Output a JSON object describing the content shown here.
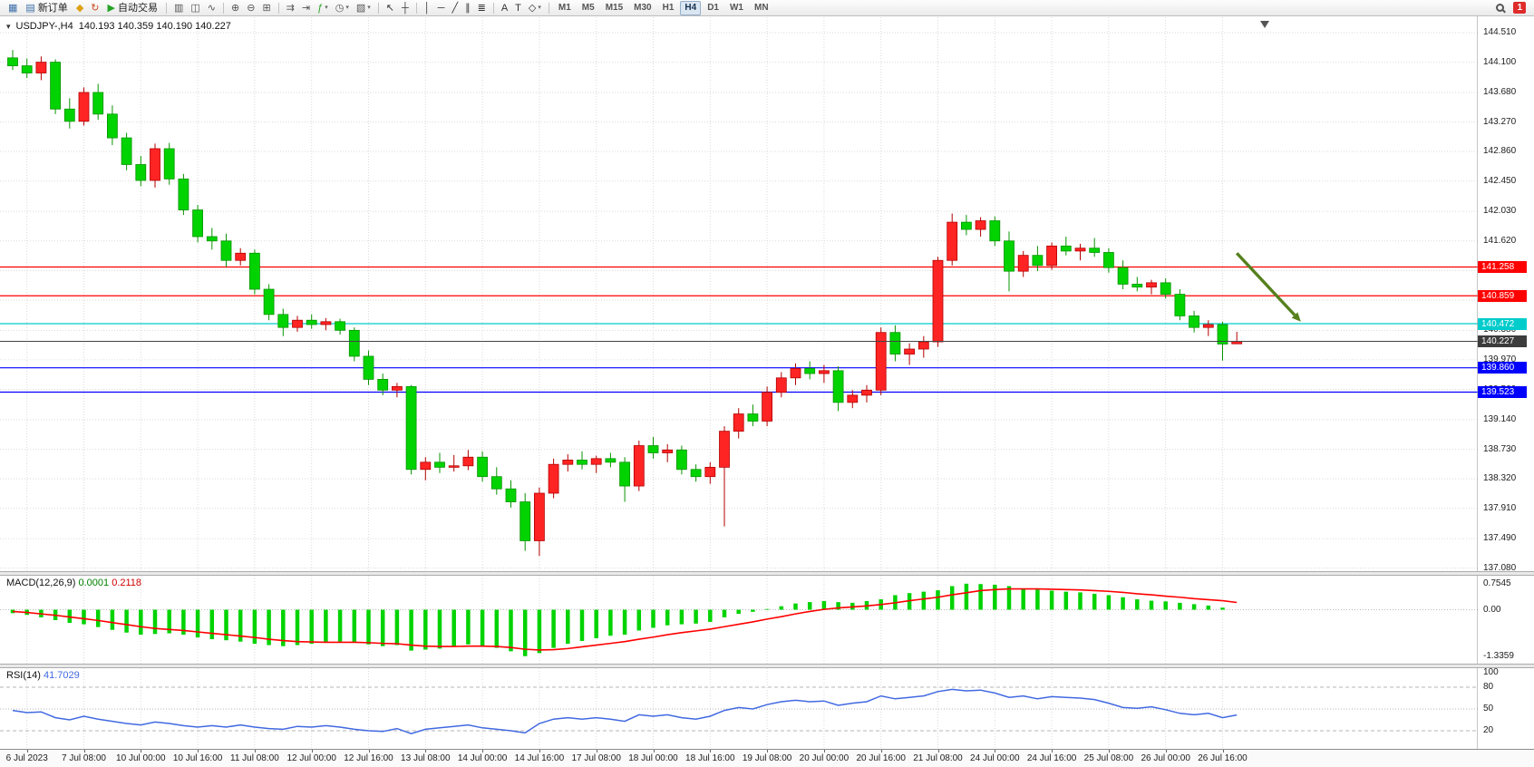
{
  "toolbar": {
    "items": [
      {
        "kind": "icon",
        "name": "new-chart-icon",
        "glyph": "▦",
        "color": "#3d6fa8"
      },
      {
        "kind": "button",
        "name": "new-order-button",
        "glyph": "▤",
        "glyph_color": "#3d6fa8",
        "label": "新订单"
      },
      {
        "kind": "icon",
        "name": "market-watch-icon",
        "glyph": "◆",
        "color": "#dda012"
      },
      {
        "kind": "icon",
        "name": "refresh-icon",
        "glyph": "↻",
        "color": "#d24a1e"
      },
      {
        "kind": "button",
        "name": "algo-trading-button",
        "glyph": "▶",
        "glyph_color": "#27a327",
        "label": "自动交易"
      },
      {
        "kind": "sep"
      },
      {
        "kind": "icon",
        "name": "bar-chart-mode-icon",
        "glyph": "▥",
        "color": "#555555"
      },
      {
        "kind": "icon",
        "name": "candlestick-mode-icon",
        "glyph": "◫",
        "color": "#555555"
      },
      {
        "kind": "icon",
        "name": "line-chart-mode-icon",
        "glyph": "∿",
        "color": "#555555"
      },
      {
        "kind": "sep"
      },
      {
        "kind": "icon",
        "name": "zoom-in-icon",
        "glyph": "⊕",
        "color": "#555555"
      },
      {
        "kind": "icon",
        "name": "zoom-out-icon",
        "glyph": "⊖",
        "color": "#555555"
      },
      {
        "kind": "icon",
        "name": "tile-windows-icon",
        "glyph": "⊞",
        "color": "#555555"
      },
      {
        "kind": "sep"
      },
      {
        "kind": "icon",
        "name": "auto-scroll-icon",
        "glyph": "⇉",
        "color": "#555555"
      },
      {
        "kind": "icon",
        "name": "chart-shift-icon",
        "glyph": "⇥",
        "color": "#555555"
      },
      {
        "kind": "icon",
        "name": "indicators-icon",
        "glyph": "ƒ",
        "color": "#27a327",
        "dropdown": true
      },
      {
        "kind": "icon",
        "name": "timeframes-clock-icon",
        "glyph": "◷",
        "color": "#555555",
        "dropdown": true
      },
      {
        "kind": "icon",
        "name": "templates-icon",
        "glyph": "▧",
        "color": "#555555",
        "dropdown": true
      },
      {
        "kind": "sep"
      },
      {
        "kind": "icon",
        "name": "cursor-icon",
        "glyph": "↖",
        "color": "#333333"
      },
      {
        "kind": "icon",
        "name": "crosshair-icon",
        "glyph": "┼",
        "color": "#333333"
      },
      {
        "kind": "sep"
      },
      {
        "kind": "icon",
        "name": "vertical-line-icon",
        "glyph": "│",
        "color": "#333333"
      },
      {
        "kind": "icon",
        "name": "horizontal-line-icon",
        "glyph": "─",
        "color": "#333333"
      },
      {
        "kind": "icon",
        "name": "trendline-icon",
        "glyph": "╱",
        "color": "#333333"
      },
      {
        "kind": "icon",
        "name": "channel-icon",
        "glyph": "∥",
        "color": "#333333"
      },
      {
        "kind": "icon",
        "name": "fibonacci-icon",
        "glyph": "≣",
        "color": "#333333"
      },
      {
        "kind": "sep"
      },
      {
        "kind": "icon",
        "name": "text-tool-icon",
        "glyph": "A",
        "color": "#333333"
      },
      {
        "kind": "icon",
        "name": "label-tool-icon",
        "glyph": "T",
        "color": "#333333"
      },
      {
        "kind": "icon",
        "name": "shapes-tool-icon",
        "glyph": "◇",
        "color": "#333333",
        "dropdown": true
      },
      {
        "kind": "sep"
      }
    ],
    "timeframes": [
      "M1",
      "M5",
      "M15",
      "M30",
      "H1",
      "H4",
      "D1",
      "W1",
      "MN"
    ],
    "active_timeframe": "H4",
    "notification_count": "1"
  },
  "chart": {
    "title": "USDJPY-,H4",
    "ohlc": "140.193 140.359 140.190 140.227"
  },
  "chart_data": {
    "type": "candlestick",
    "symbol": "USDJPY-",
    "timeframe": "H4",
    "title": "USDJPY-,H4 140.193 140.359 140.190 140.227",
    "up_color": "#ff2424",
    "down_color": "#00d300",
    "ylim": [
      136.95,
      144.75
    ],
    "y_gridlines": [
      144.51,
      144.1,
      143.68,
      143.27,
      142.86,
      142.45,
      142.03,
      141.62,
      141.21,
      140.8,
      140.38,
      139.97,
      139.56,
      139.14,
      138.73,
      138.32,
      137.91,
      137.49,
      137.08
    ],
    "hlines": [
      {
        "price": 141.258,
        "color": "#ff0000",
        "label": "141.258"
      },
      {
        "price": 140.859,
        "color": "#ff0000",
        "label": "140.859"
      },
      {
        "price": 140.472,
        "color": "#00cccc",
        "label": "140.472"
      },
      {
        "price": 139.86,
        "color": "#0000ff",
        "label": "139.860"
      },
      {
        "price": 139.523,
        "color": "#0000ff",
        "label": "139.523"
      }
    ],
    "bid_line": {
      "price": 140.227,
      "color": "#444444",
      "label": "140.227",
      "badge": "#3c3c3c"
    },
    "arrow_annotation": {
      "from": {
        "candle": 86,
        "price": 141.45
      },
      "to": {
        "candle": 90.5,
        "price": 140.5
      },
      "color": "#56801e"
    },
    "time_labels": [
      "6 Jul 2023",
      "7 Jul 08:00",
      "10 Jul 00:00",
      "10 Jul 16:00",
      "11 Jul 08:00",
      "12 Jul 00:00",
      "12 Jul 16:00",
      "13 Jul 08:00",
      "14 Jul 00:00",
      "14 Jul 16:00",
      "17 Jul 08:00",
      "18 Jul 00:00",
      "18 Jul 16:00",
      "19 Jul 08:00",
      "20 Jul 00:00",
      "20 Jul 16:00",
      "21 Jul 08:00",
      "24 Jul 00:00",
      "24 Jul 16:00",
      "25 Jul 08:00",
      "26 Jul 00:00",
      "26 Jul 16:00"
    ],
    "candles": [
      [
        144.16,
        144.27,
        143.99,
        144.05
      ],
      [
        144.05,
        144.15,
        143.88,
        143.95
      ],
      [
        143.95,
        144.18,
        143.85,
        144.1
      ],
      [
        144.1,
        144.14,
        143.38,
        143.45
      ],
      [
        143.45,
        143.6,
        143.18,
        143.28
      ],
      [
        143.28,
        143.75,
        143.22,
        143.68
      ],
      [
        143.68,
        143.8,
        143.3,
        143.38
      ],
      [
        143.38,
        143.5,
        142.95,
        143.05
      ],
      [
        143.05,
        143.12,
        142.6,
        142.68
      ],
      [
        142.68,
        142.8,
        142.38,
        142.46
      ],
      [
        142.46,
        142.97,
        142.36,
        142.9
      ],
      [
        142.9,
        142.98,
        142.4,
        142.48
      ],
      [
        142.48,
        142.55,
        141.98,
        142.05
      ],
      [
        142.05,
        142.12,
        141.6,
        141.68
      ],
      [
        141.68,
        141.8,
        141.5,
        141.62
      ],
      [
        141.62,
        141.72,
        141.26,
        141.35
      ],
      [
        141.35,
        141.52,
        141.28,
        141.45
      ],
      [
        141.45,
        141.5,
        140.88,
        140.95
      ],
      [
        140.95,
        141.02,
        140.52,
        140.6
      ],
      [
        140.6,
        140.68,
        140.3,
        140.42
      ],
      [
        140.42,
        140.58,
        140.36,
        140.52
      ],
      [
        140.52,
        140.6,
        140.4,
        140.46
      ],
      [
        140.46,
        140.55,
        140.38,
        140.5
      ],
      [
        140.5,
        140.54,
        140.32,
        140.38
      ],
      [
        140.38,
        140.42,
        139.95,
        140.02
      ],
      [
        140.02,
        140.1,
        139.62,
        139.7
      ],
      [
        139.7,
        139.78,
        139.48,
        139.55
      ],
      [
        139.55,
        139.65,
        139.45,
        139.6
      ],
      [
        139.6,
        139.62,
        138.38,
        138.45
      ],
      [
        138.45,
        138.62,
        138.3,
        138.55
      ],
      [
        138.55,
        138.68,
        138.4,
        138.48
      ],
      [
        138.48,
        138.65,
        138.42,
        138.5
      ],
      [
        138.5,
        138.72,
        138.44,
        138.62
      ],
      [
        138.62,
        138.7,
        138.28,
        138.35
      ],
      [
        138.35,
        138.48,
        138.1,
        138.18
      ],
      [
        138.18,
        138.3,
        137.92,
        138.0
      ],
      [
        138.0,
        138.12,
        137.32,
        137.46
      ],
      [
        137.46,
        138.2,
        137.25,
        138.12
      ],
      [
        138.12,
        138.6,
        138.05,
        138.52
      ],
      [
        138.52,
        138.66,
        138.42,
        138.58
      ],
      [
        138.58,
        138.7,
        138.45,
        138.52
      ],
      [
        138.52,
        138.64,
        138.4,
        138.6
      ],
      [
        138.6,
        138.68,
        138.48,
        138.55
      ],
      [
        138.55,
        138.62,
        138.0,
        138.22
      ],
      [
        138.22,
        138.85,
        138.15,
        138.78
      ],
      [
        138.78,
        138.9,
        138.6,
        138.68
      ],
      [
        138.68,
        138.8,
        138.55,
        138.72
      ],
      [
        138.72,
        138.78,
        138.38,
        138.45
      ],
      [
        138.45,
        138.52,
        138.28,
        138.35
      ],
      [
        138.35,
        138.55,
        138.25,
        138.48
      ],
      [
        138.48,
        139.05,
        137.66,
        138.98
      ],
      [
        138.98,
        139.3,
        138.88,
        139.22
      ],
      [
        139.22,
        139.35,
        139.05,
        139.12
      ],
      [
        139.12,
        139.6,
        139.05,
        139.52
      ],
      [
        139.52,
        139.8,
        139.45,
        139.72
      ],
      [
        139.72,
        139.92,
        139.62,
        139.85
      ],
      [
        139.85,
        139.95,
        139.7,
        139.78
      ],
      [
        139.78,
        139.9,
        139.65,
        139.82
      ],
      [
        139.82,
        139.88,
        139.26,
        139.38
      ],
      [
        139.38,
        139.55,
        139.3,
        139.48
      ],
      [
        139.48,
        139.62,
        139.38,
        139.55
      ],
      [
        139.55,
        140.42,
        139.48,
        140.35
      ],
      [
        140.35,
        140.45,
        139.95,
        140.05
      ],
      [
        140.05,
        140.2,
        139.9,
        140.12
      ],
      [
        140.12,
        140.3,
        140.0,
        140.22
      ],
      [
        140.22,
        141.4,
        140.15,
        141.35
      ],
      [
        141.35,
        142.0,
        141.28,
        141.88
      ],
      [
        141.88,
        141.98,
        141.7,
        141.78
      ],
      [
        141.78,
        141.95,
        141.68,
        141.9
      ],
      [
        141.9,
        141.96,
        141.55,
        141.62
      ],
      [
        141.62,
        141.75,
        140.92,
        141.2
      ],
      [
        141.2,
        141.48,
        141.12,
        141.42
      ],
      [
        141.42,
        141.55,
        141.2,
        141.28
      ],
      [
        141.28,
        141.6,
        141.22,
        141.55
      ],
      [
        141.55,
        141.68,
        141.42,
        141.48
      ],
      [
        141.48,
        141.58,
        141.35,
        141.52
      ],
      [
        141.52,
        141.66,
        141.4,
        141.46
      ],
      [
        141.46,
        141.52,
        141.18,
        141.25
      ],
      [
        141.25,
        141.35,
        140.95,
        141.02
      ],
      [
        141.02,
        141.12,
        140.92,
        140.98
      ],
      [
        140.98,
        141.08,
        140.88,
        141.04
      ],
      [
        141.04,
        141.1,
        140.82,
        140.88
      ],
      [
        140.88,
        140.95,
        140.52,
        140.58
      ],
      [
        140.58,
        140.65,
        140.35,
        140.42
      ],
      [
        140.42,
        140.52,
        140.3,
        140.46
      ],
      [
        140.46,
        140.5,
        139.96,
        140.19
      ],
      [
        140.193,
        140.359,
        140.19,
        140.227
      ]
    ],
    "macd": {
      "name": "MACD(12,26,9)",
      "value_main": "0.0001",
      "value_signal": "0.2118",
      "scale": [
        "0.7545",
        "0.00",
        "-1.3359"
      ],
      "scale_values": [
        0.7545,
        0,
        -1.3359
      ],
      "hist_color": "#00d300",
      "signal_color": "#ff0000",
      "histogram": [
        -0.1,
        -0.15,
        -0.22,
        -0.3,
        -0.38,
        -0.42,
        -0.5,
        -0.58,
        -0.66,
        -0.72,
        -0.7,
        -0.68,
        -0.72,
        -0.8,
        -0.85,
        -0.88,
        -0.92,
        -0.98,
        -1.02,
        -1.05,
        -1.02,
        -0.98,
        -0.95,
        -0.92,
        -0.95,
        -1.0,
        -1.05,
        -1.02,
        -1.18,
        -1.15,
        -1.12,
        -1.05,
        -1.0,
        -1.05,
        -1.1,
        -1.2,
        -1.34,
        -1.25,
        -1.1,
        -0.98,
        -0.9,
        -0.82,
        -0.75,
        -0.72,
        -0.6,
        -0.52,
        -0.45,
        -0.42,
        -0.4,
        -0.35,
        -0.22,
        -0.12,
        -0.06,
        0.02,
        0.1,
        0.18,
        0.22,
        0.25,
        0.22,
        0.2,
        0.25,
        0.3,
        0.42,
        0.48,
        0.52,
        0.56,
        0.68,
        0.75,
        0.74,
        0.72,
        0.68,
        0.6,
        0.58,
        0.55,
        0.52,
        0.5,
        0.46,
        0.42,
        0.36,
        0.3,
        0.26,
        0.24,
        0.2,
        0.16,
        0.12,
        0.06,
        0.0
      ],
      "signal": [
        -0.05,
        -0.08,
        -0.12,
        -0.16,
        -0.21,
        -0.26,
        -0.31,
        -0.37,
        -0.43,
        -0.49,
        -0.54,
        -0.57,
        -0.6,
        -0.64,
        -0.68,
        -0.72,
        -0.76,
        -0.8,
        -0.85,
        -0.89,
        -0.92,
        -0.93,
        -0.94,
        -0.94,
        -0.94,
        -0.95,
        -0.97,
        -0.98,
        -1.02,
        -1.05,
        -1.06,
        -1.06,
        -1.05,
        -1.05,
        -1.06,
        -1.09,
        -1.14,
        -1.16,
        -1.15,
        -1.12,
        -1.07,
        -1.02,
        -0.97,
        -0.92,
        -0.85,
        -0.79,
        -0.72,
        -0.66,
        -0.61,
        -0.56,
        -0.49,
        -0.42,
        -0.35,
        -0.27,
        -0.2,
        -0.12,
        -0.05,
        0.01,
        0.05,
        0.08,
        0.11,
        0.15,
        0.2,
        0.26,
        0.31,
        0.36,
        0.43,
        0.49,
        0.55,
        0.58,
        0.6,
        0.6,
        0.6,
        0.59,
        0.58,
        0.57,
        0.55,
        0.53,
        0.5,
        0.46,
        0.43,
        0.39,
        0.36,
        0.32,
        0.29,
        0.26,
        0.21
      ]
    },
    "rsi": {
      "name": "RSI(14)",
      "value": "41.7029",
      "color": "#4169e1",
      "levels": [
        80,
        50,
        20
      ],
      "scale": [
        "100",
        "80",
        "50",
        "20"
      ],
      "scale_values": [
        100,
        80,
        50,
        20
      ],
      "values": [
        48,
        45,
        46,
        38,
        35,
        40,
        36,
        33,
        30,
        28,
        32,
        30,
        27,
        25,
        27,
        25,
        28,
        25,
        23,
        22,
        26,
        25,
        27,
        25,
        22,
        20,
        19,
        23,
        16,
        22,
        24,
        26,
        28,
        24,
        22,
        20,
        17,
        30,
        36,
        38,
        36,
        38,
        36,
        33,
        42,
        40,
        42,
        38,
        36,
        40,
        48,
        52,
        50,
        56,
        60,
        62,
        60,
        61,
        55,
        58,
        60,
        68,
        64,
        66,
        68,
        74,
        77,
        75,
        76,
        72,
        66,
        68,
        64,
        67,
        66,
        65,
        63,
        58,
        52,
        51,
        53,
        49,
        44,
        42,
        44,
        38,
        41.7
      ]
    }
  }
}
